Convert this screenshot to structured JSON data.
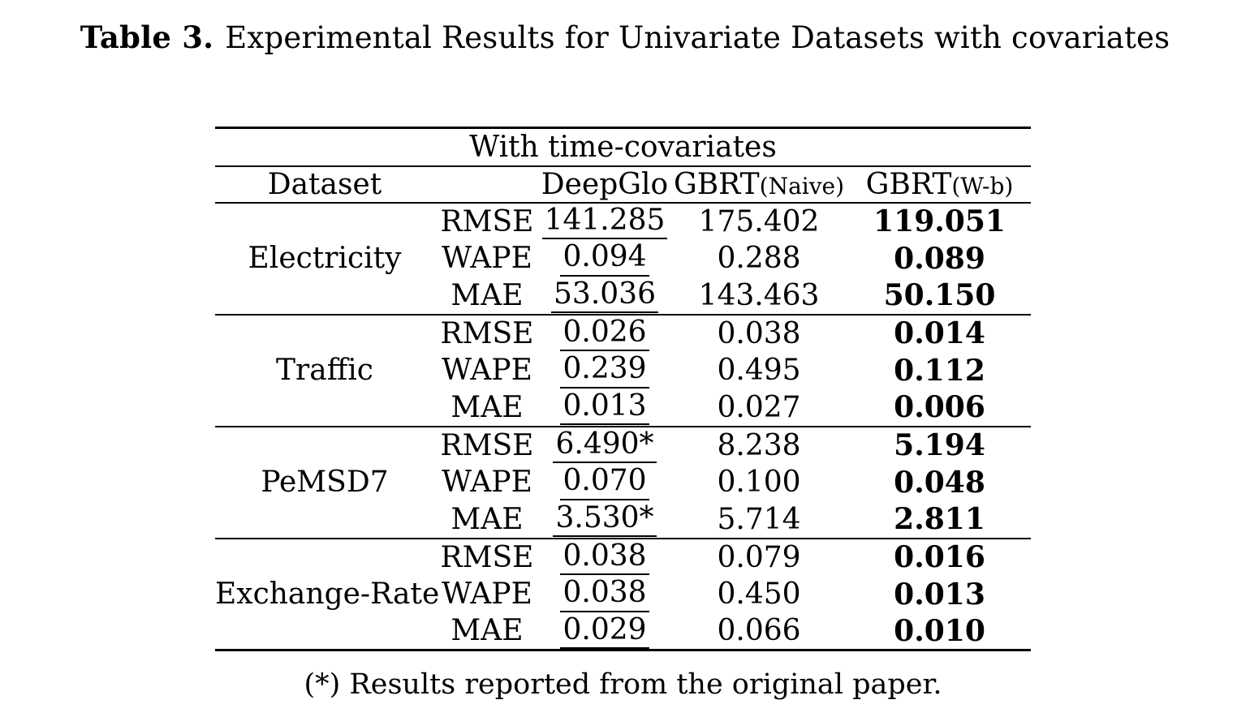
{
  "title": {
    "label": "Table 3.",
    "text": "Experimental Results for Univariate Datasets with covariates"
  },
  "colors": {
    "ink": "#000000",
    "background": "#ffffff"
  },
  "table": {
    "span_header": "With time-covariates",
    "columns": {
      "dataset": "Dataset",
      "deepglo": "DeepGlo",
      "gbrt_naive_base": "GBRT",
      "gbrt_naive_sub": "(Naive)",
      "gbrt_wb_base": "GBRT",
      "gbrt_wb_sub": "(W-b)"
    },
    "groups": [
      {
        "dataset": "Electricity",
        "rows": [
          {
            "metric": "RMSE",
            "deepglo": "141.285",
            "gbrt_naive": "175.402",
            "gbrt_wb": "119.051"
          },
          {
            "metric": "WAPE",
            "deepglo": "0.094",
            "gbrt_naive": "0.288",
            "gbrt_wb": "0.089"
          },
          {
            "metric": "MAE",
            "deepglo": "53.036",
            "gbrt_naive": "143.463",
            "gbrt_wb": "50.150"
          }
        ]
      },
      {
        "dataset": "Traffic",
        "rows": [
          {
            "metric": "RMSE",
            "deepglo": "0.026",
            "gbrt_naive": "0.038",
            "gbrt_wb": "0.014"
          },
          {
            "metric": "WAPE",
            "deepglo": "0.239",
            "gbrt_naive": "0.495",
            "gbrt_wb": "0.112"
          },
          {
            "metric": "MAE",
            "deepglo": "0.013",
            "gbrt_naive": "0.027",
            "gbrt_wb": "0.006"
          }
        ]
      },
      {
        "dataset": "PeMSD7",
        "rows": [
          {
            "metric": "RMSE",
            "deepglo": "6.490*",
            "gbrt_naive": "8.238",
            "gbrt_wb": "5.194"
          },
          {
            "metric": "WAPE",
            "deepglo": "0.070",
            "gbrt_naive": "0.100",
            "gbrt_wb": "0.048"
          },
          {
            "metric": "MAE",
            "deepglo": "3.530*",
            "gbrt_naive": "5.714",
            "gbrt_wb": "2.811"
          }
        ]
      },
      {
        "dataset": "Exchange-Rate",
        "rows": [
          {
            "metric": "RMSE",
            "deepglo": "0.038",
            "gbrt_naive": "0.079",
            "gbrt_wb": "0.016"
          },
          {
            "metric": "WAPE",
            "deepglo": "0.038",
            "gbrt_naive": "0.450",
            "gbrt_wb": "0.013"
          },
          {
            "metric": "MAE",
            "deepglo": "0.029",
            "gbrt_naive": "0.066",
            "gbrt_wb": "0.010"
          }
        ]
      }
    ],
    "footnote": "(*) Results reported from the original paper."
  }
}
